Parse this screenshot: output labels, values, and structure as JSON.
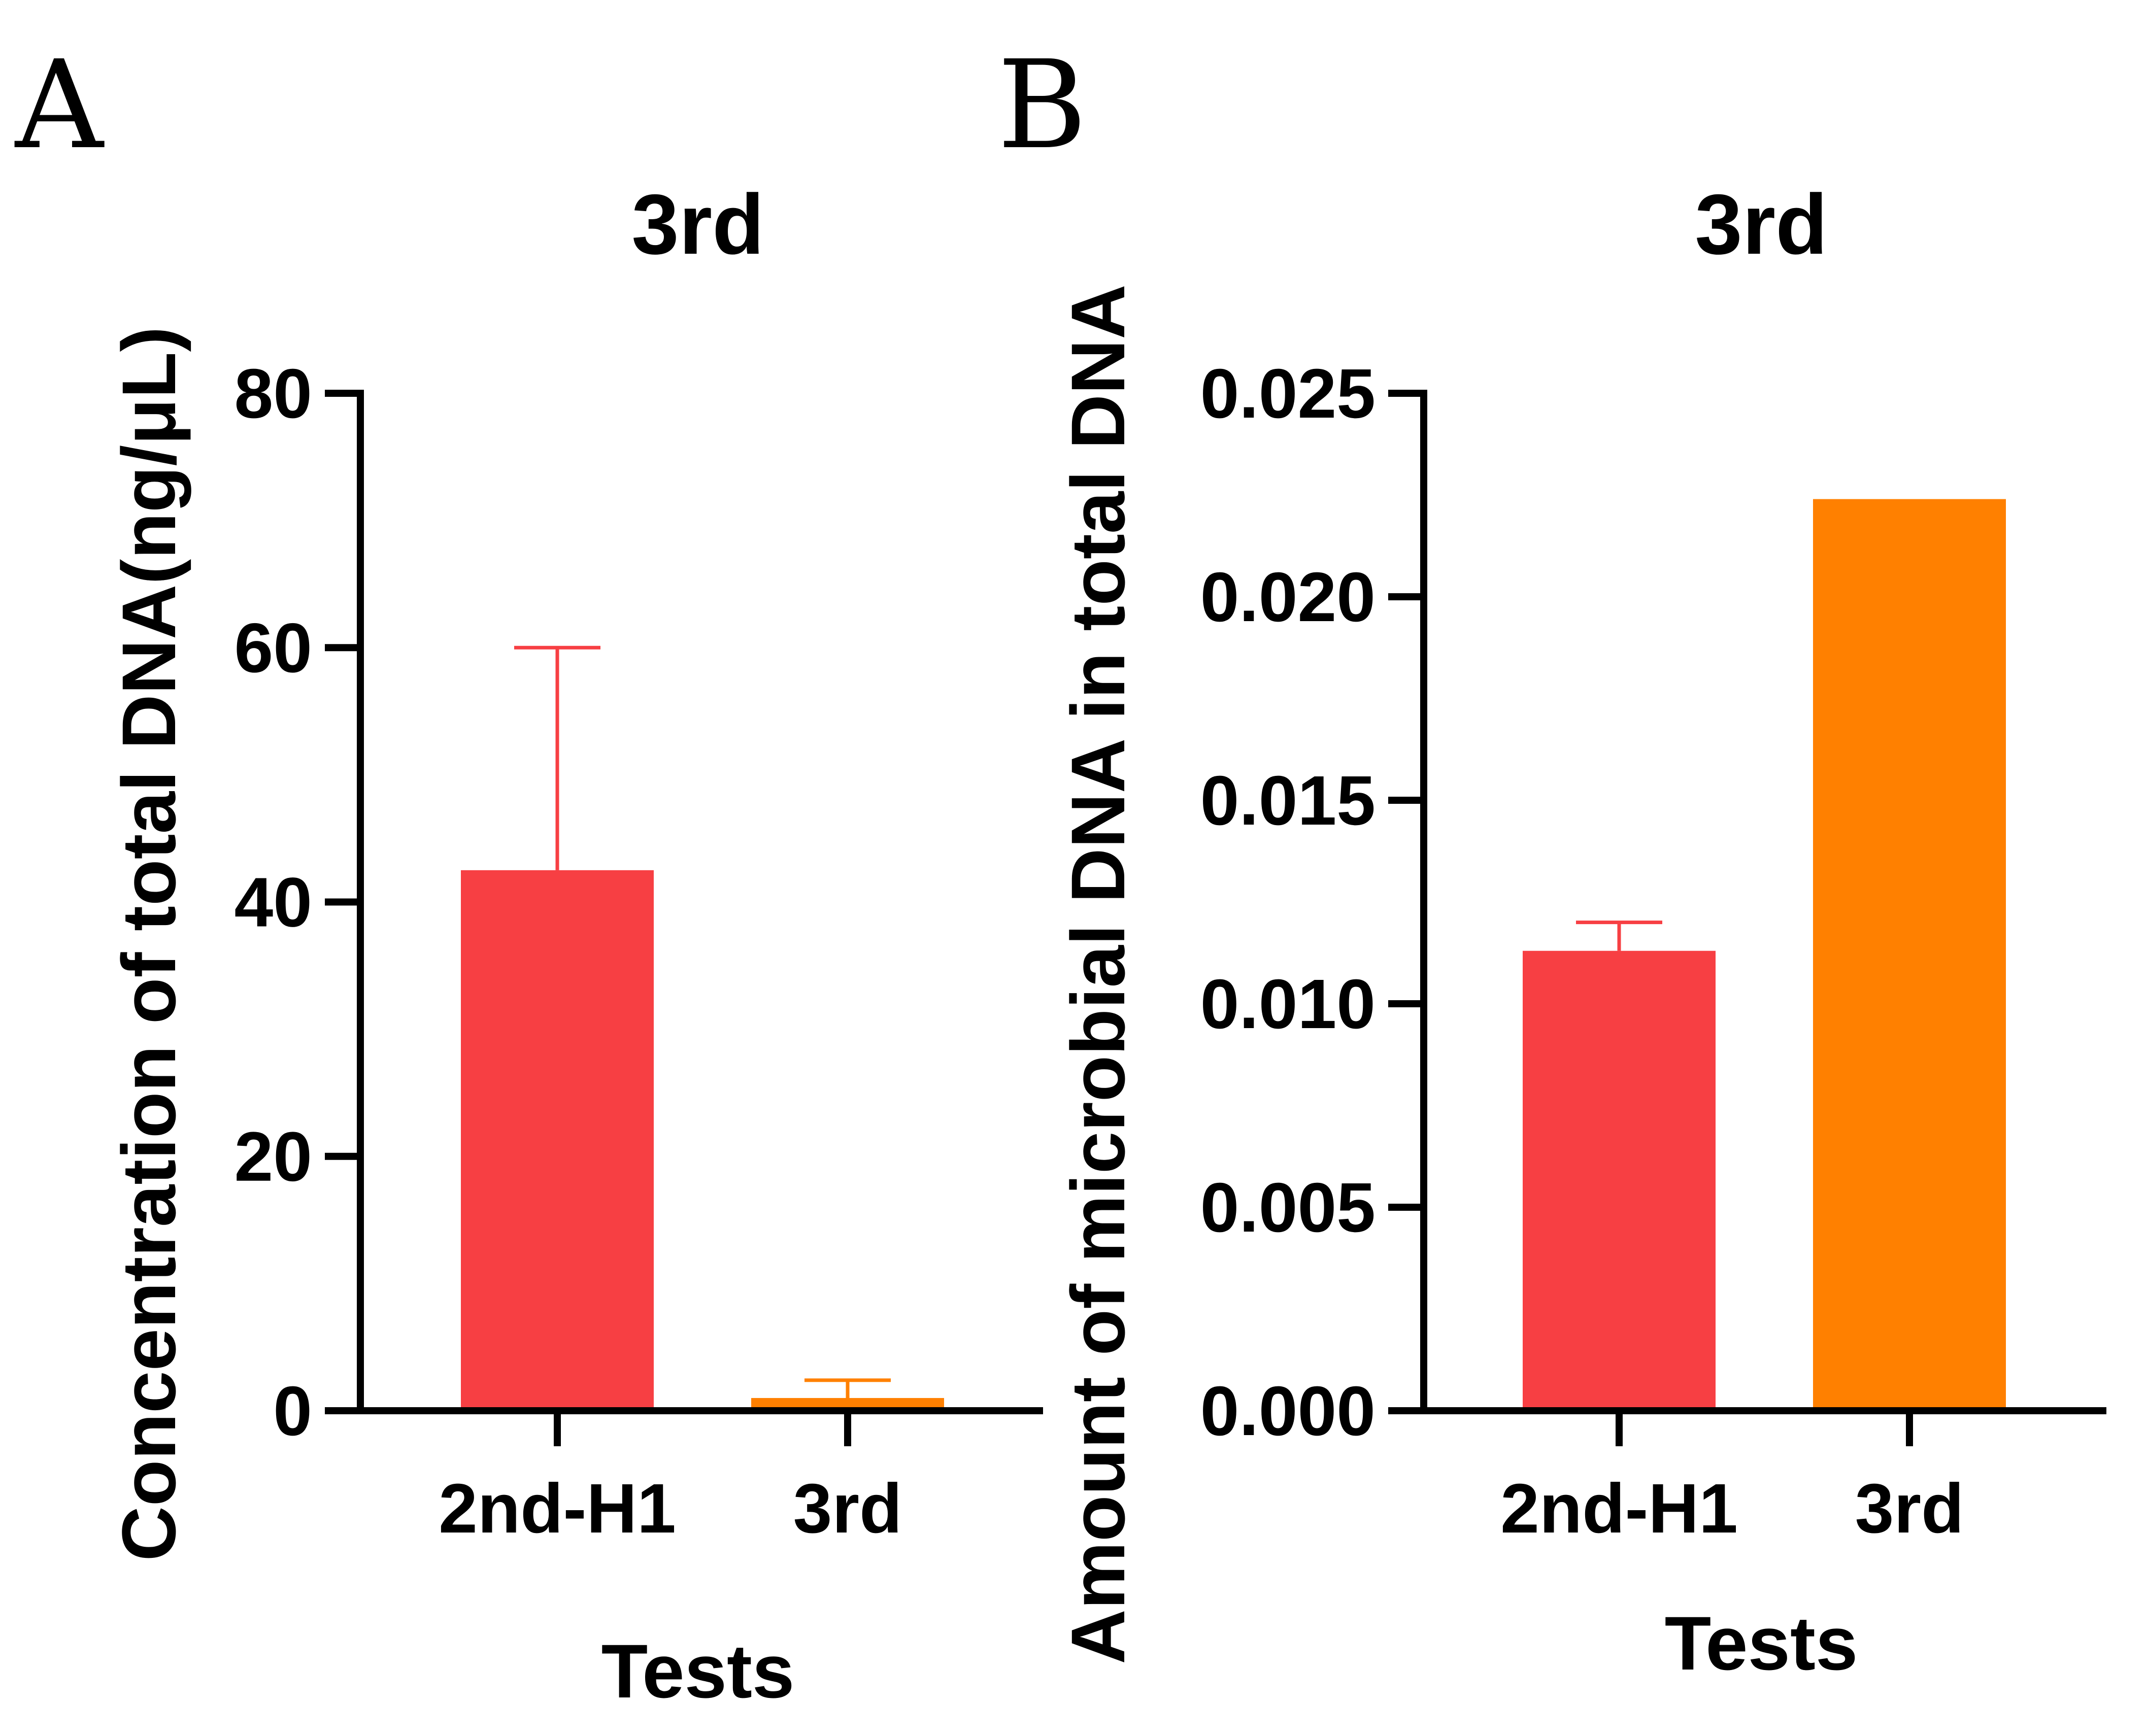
{
  "chart_data": [
    {
      "panel": "A",
      "type": "bar",
      "title": "3rd",
      "xlabel": "Tests",
      "ylabel": "Concentration of total DNA(ng/μL)",
      "categories": [
        "2nd-H1",
        "3rd"
      ],
      "values": [
        42.5,
        1.0
      ],
      "error_upper": [
        60.0,
        2.4
      ],
      "colors": [
        "#f73f43",
        "#ff8000"
      ],
      "ylim": [
        0,
        80
      ],
      "yticks": [
        0,
        20,
        40,
        60,
        80
      ],
      "ytick_labels": [
        "0",
        "20",
        "40",
        "60",
        "80"
      ],
      "grid": false,
      "legend": "none"
    },
    {
      "panel": "B",
      "type": "bar",
      "title": "3rd",
      "xlabel": "Tests",
      "ylabel": "Amount of microbial DNA in total DNA",
      "categories": [
        "2nd-H1",
        "3rd"
      ],
      "values": [
        0.0113,
        0.0224
      ],
      "error_upper": [
        0.012,
        null
      ],
      "colors": [
        "#f73f43",
        "#ff8000"
      ],
      "ylim": [
        0,
        0.025
      ],
      "yticks": [
        0,
        0.005,
        0.01,
        0.015,
        0.02,
        0.025
      ],
      "ytick_labels": [
        "0.000",
        "0.005",
        "0.010",
        "0.015",
        "0.020",
        "0.025"
      ],
      "grid": false,
      "legend": "none"
    }
  ]
}
